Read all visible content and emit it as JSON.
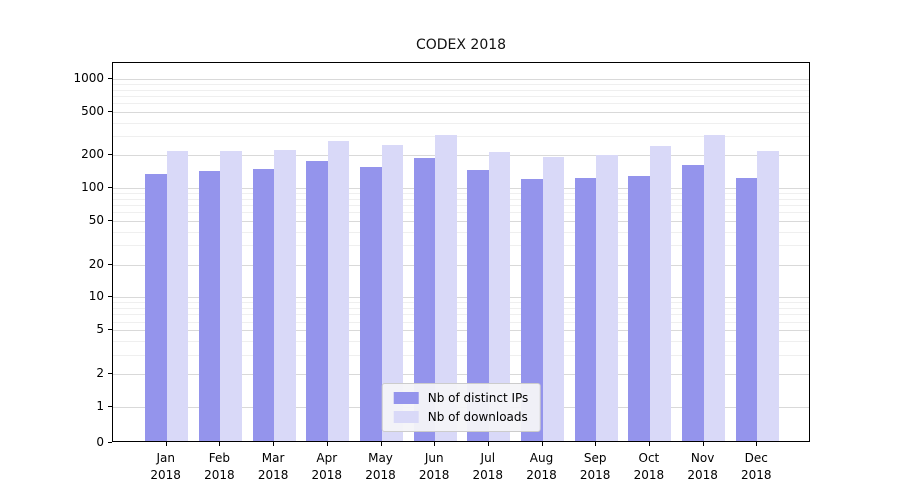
{
  "chart_data": {
    "type": "bar",
    "title": "CODEX 2018",
    "categories": [
      "Jan",
      "Feb",
      "Mar",
      "Apr",
      "May",
      "Jun",
      "Jul",
      "Aug",
      "Sep",
      "Oct",
      "Nov",
      "Dec"
    ],
    "x_year_label": "2018",
    "series": [
      {
        "name": "Nb of distinct IPs",
        "color": "#9494ec",
        "values": [
          130,
          138,
          143,
          172,
          150,
          183,
          140,
          116,
          118,
          124,
          155,
          119
        ]
      },
      {
        "name": "Nb of downloads",
        "color": "#d9d9f8",
        "values": [
          210,
          212,
          213,
          262,
          240,
          293,
          206,
          186,
          192,
          234,
          292,
          212
        ]
      }
    ],
    "y_ticks": [
      0,
      1,
      2,
      5,
      10,
      20,
      50,
      100,
      200,
      500,
      1000
    ],
    "y_minor_gridlines": [
      3,
      4,
      6,
      7,
      8,
      9,
      30,
      40,
      60,
      70,
      80,
      90,
      300,
      400,
      600,
      700,
      800,
      900
    ],
    "scale": "symlog",
    "ylim": [
      0,
      1000
    ],
    "grid": "horizontal",
    "legend_position": "lower center"
  }
}
